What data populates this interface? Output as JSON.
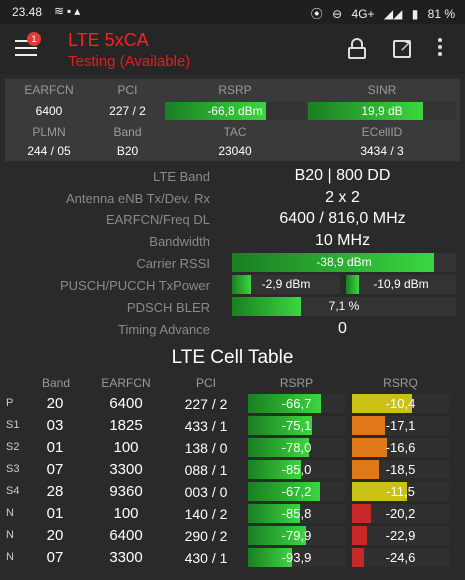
{
  "status": {
    "time": "23.48",
    "network": "4G+",
    "battery": "81 %"
  },
  "appbar": {
    "badge": "1",
    "title": "LTE 5xCA",
    "subtitle": "Testing (Available)"
  },
  "summary": {
    "earfcn_label": "EARFCN",
    "earfcn": "6400",
    "pci_label": "PCI",
    "pci": "227 / 2",
    "rsrp_label": "RSRP",
    "rsrp": "-66,8 dBm",
    "rsrp_fill": 0.72,
    "sinr_label": "SINR",
    "sinr": "19,9 dB",
    "sinr_fill": 0.78,
    "plmn_label": "PLMN",
    "plmn": "244 / 05",
    "band_label": "Band",
    "band": "B20",
    "tac_label": "TAC",
    "tac": "23040",
    "ecellid_label": "ECellID",
    "ecellid": "3434 / 3"
  },
  "details": {
    "lte_band_label": "LTE Band",
    "lte_band": "B20 | 800 DD",
    "antenna_label": "Antenna eNB Tx/Dev. Rx",
    "antenna": "2 x 2",
    "earfcn_freq_label": "EARFCN/Freq DL",
    "earfcn_freq": "6400 / 816,0 MHz",
    "bandwidth_label": "Bandwidth",
    "bandwidth": "10 MHz",
    "rssi_label": "Carrier RSSI",
    "rssi": "-38,9 dBm",
    "rssi_fill": 0.9,
    "txpower_label": "PUSCH/PUCCH TxPower",
    "pusch": "-2,9 dBm",
    "pusch_fill": 0.18,
    "pucch": "-10,9 dBm",
    "pucch_fill": 0.12,
    "bler_label": "PDSCH BLER",
    "bler": "7,1 %",
    "bler_fill": 0.31,
    "ta_label": "Timing Advance",
    "ta": "0"
  },
  "cell_table": {
    "title": "LTE Cell Table",
    "headers": {
      "band": "Band",
      "earfcn": "EARFCN",
      "pci": "PCI",
      "rsrp": "RSRP",
      "rsrq": "RSRQ"
    },
    "rows": [
      {
        "type": "P",
        "band": "20",
        "earfcn": "6400",
        "pci": "227 / 2",
        "rsrp": "-66,7",
        "rsrp_fill": 0.75,
        "rsrq": "-10,4",
        "rsrq_fill": 0.62,
        "rsrq_color": "#c9c214"
      },
      {
        "type": "S1",
        "band": "03",
        "earfcn": "1825",
        "pci": "433 / 1",
        "rsrp": "-75,1",
        "rsrp_fill": 0.66,
        "rsrq": "-17,1",
        "rsrq_fill": 0.34,
        "rsrq_color": "#e07818"
      },
      {
        "type": "S2",
        "band": "01",
        "earfcn": "100",
        "pci": "138 / 0",
        "rsrp": "-78,0",
        "rsrp_fill": 0.63,
        "rsrq": "-16,6",
        "rsrq_fill": 0.36,
        "rsrq_color": "#e07818"
      },
      {
        "type": "S3",
        "band": "07",
        "earfcn": "3300",
        "pci": "088 / 1",
        "rsrp": "-85,0",
        "rsrp_fill": 0.55,
        "rsrq": "-18,5",
        "rsrq_fill": 0.28,
        "rsrq_color": "#e07818"
      },
      {
        "type": "S4",
        "band": "28",
        "earfcn": "9360",
        "pci": "003 / 0",
        "rsrp": "-67,2",
        "rsrp_fill": 0.74,
        "rsrq": "-11,5",
        "rsrq_fill": 0.57,
        "rsrq_color": "#c9c214"
      },
      {
        "type": "N",
        "band": "01",
        "earfcn": "100",
        "pci": "140 / 2",
        "rsrp": "-85,8",
        "rsrp_fill": 0.54,
        "rsrq": "-20,2",
        "rsrq_fill": 0.2,
        "rsrq_color": "#c82828"
      },
      {
        "type": "N",
        "band": "20",
        "earfcn": "6400",
        "pci": "290 / 2",
        "rsrp": "-79,9",
        "rsrp_fill": 0.6,
        "rsrq": "-22,9",
        "rsrq_fill": 0.15,
        "rsrq_color": "#c82828"
      },
      {
        "type": "N",
        "band": "07",
        "earfcn": "3300",
        "pci": "430 / 1",
        "rsrp": "-93,9",
        "rsrp_fill": 0.45,
        "rsrq": "-24,6",
        "rsrq_fill": 0.12,
        "rsrq_color": "#c82828"
      }
    ]
  }
}
